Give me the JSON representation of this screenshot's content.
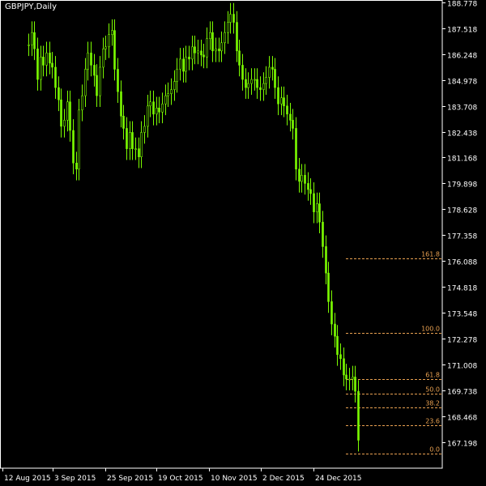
{
  "header": {
    "symbol_label": "GBPJPY,Daily"
  },
  "colors": {
    "background": "#000000",
    "candle": "#7CFC00",
    "axis": "#ffffff",
    "fib": "#E8A050"
  },
  "chart_data": {
    "type": "candlestick",
    "title": "GBPJPY,Daily",
    "ylim": [
      165.928,
      188.778
    ],
    "y_ticks": [
      "188.778",
      "187.518",
      "186.248",
      "184.978",
      "183.708",
      "182.438",
      "181.168",
      "179.898",
      "178.628",
      "177.358",
      "176.088",
      "174.818",
      "173.548",
      "172.278",
      "171.008",
      "169.738",
      "168.468",
      "167.198"
    ],
    "x_ticks": [
      "12 Aug 2015",
      "3 Sep 2015",
      "25 Sep 2015",
      "19 Oct 2015",
      "10 Nov 2015",
      "2 Dec 2015",
      "24 Dec 2015"
    ],
    "close": [
      186.7,
      187.3,
      186.5,
      185.0,
      186.1,
      185.7,
      186.3,
      185.8,
      185.6,
      184.6,
      184.0,
      182.7,
      183.0,
      183.9,
      182.5,
      180.9,
      180.6,
      183.5,
      184.2,
      185.5,
      186.3,
      185.7,
      185.2,
      184.2,
      185.6,
      186.5,
      186.6,
      187.2,
      187.4,
      185.5,
      184.4,
      183.2,
      182.6,
      181.6,
      182.4,
      181.6,
      181.6,
      181.2,
      182.4,
      182.7,
      183.7,
      183.9,
      183.3,
      183.6,
      183.4,
      183.8,
      184.2,
      184.3,
      184.5,
      184.9,
      185.5,
      186.0,
      185.4,
      186.1,
      186.0,
      186.6,
      186.3,
      186.4,
      186.2,
      186.1,
      187.0,
      187.3,
      186.4,
      186.5,
      186.4,
      186.8,
      187.3,
      187.8,
      188.2,
      187.8,
      186.4,
      185.7,
      185.0,
      184.6,
      184.8,
      185.0,
      185.0,
      184.6,
      184.5,
      184.8,
      185.1,
      185.6,
      185.5,
      184.6,
      183.8,
      184.1,
      183.7,
      183.3,
      183.0,
      182.6,
      180.6,
      180.0,
      180.3,
      179.9,
      179.6,
      179.4,
      178.5,
      178.9,
      178.0,
      176.8,
      175.5,
      174.1,
      173.0,
      172.4,
      171.5,
      171.3,
      170.5,
      170.3,
      170.3,
      170.4,
      169.7,
      167.3
    ],
    "series": [
      {
        "name": "GBPJPY",
        "values": [
          186.7,
          187.3,
          186.5,
          185.0,
          186.1,
          185.7,
          186.3,
          185.8,
          185.6,
          184.6,
          184.0,
          182.7,
          183.0,
          183.9,
          182.5,
          180.9,
          180.6,
          183.5,
          184.2,
          185.5,
          186.3,
          185.7,
          185.2,
          184.2,
          185.6,
          186.5,
          186.6,
          187.2,
          187.4,
          185.5,
          184.4,
          183.2,
          182.6,
          181.6,
          182.4,
          181.6,
          181.6,
          181.2,
          182.4,
          182.7,
          183.7,
          183.9,
          183.3,
          183.6,
          183.4,
          183.8,
          184.2,
          184.3,
          184.5,
          184.9,
          185.5,
          186.0,
          185.4,
          186.1,
          186.0,
          186.6,
          186.3,
          186.4,
          186.2,
          186.1,
          187.0,
          187.3,
          186.4,
          186.5,
          186.4,
          186.8,
          187.3,
          187.8,
          188.2,
          187.8,
          186.4,
          185.7,
          185.0,
          184.6,
          184.8,
          185.0,
          185.0,
          184.6,
          184.5,
          184.8,
          185.1,
          185.6,
          185.5,
          184.6,
          183.8,
          184.1,
          183.7,
          183.3,
          183.0,
          182.6,
          180.6,
          180.0,
          180.3,
          179.9,
          179.6,
          179.4,
          178.5,
          178.9,
          178.0,
          176.8,
          175.5,
          174.1,
          173.0,
          172.4,
          171.5,
          171.3,
          170.5,
          170.3,
          170.3,
          170.4,
          169.7,
          167.3
        ]
      }
    ],
    "fibonacci": [
      {
        "label": "161.8",
        "price": 176.23
      },
      {
        "label": "100.0",
        "price": 172.56
      },
      {
        "label": "61.8",
        "price": 170.3
      },
      {
        "label": "50.0",
        "price": 169.6
      },
      {
        "label": "38.2",
        "price": 168.9
      },
      {
        "label": "23.6",
        "price": 168.03
      },
      {
        "label": "0.0",
        "price": 166.63
      }
    ]
  }
}
